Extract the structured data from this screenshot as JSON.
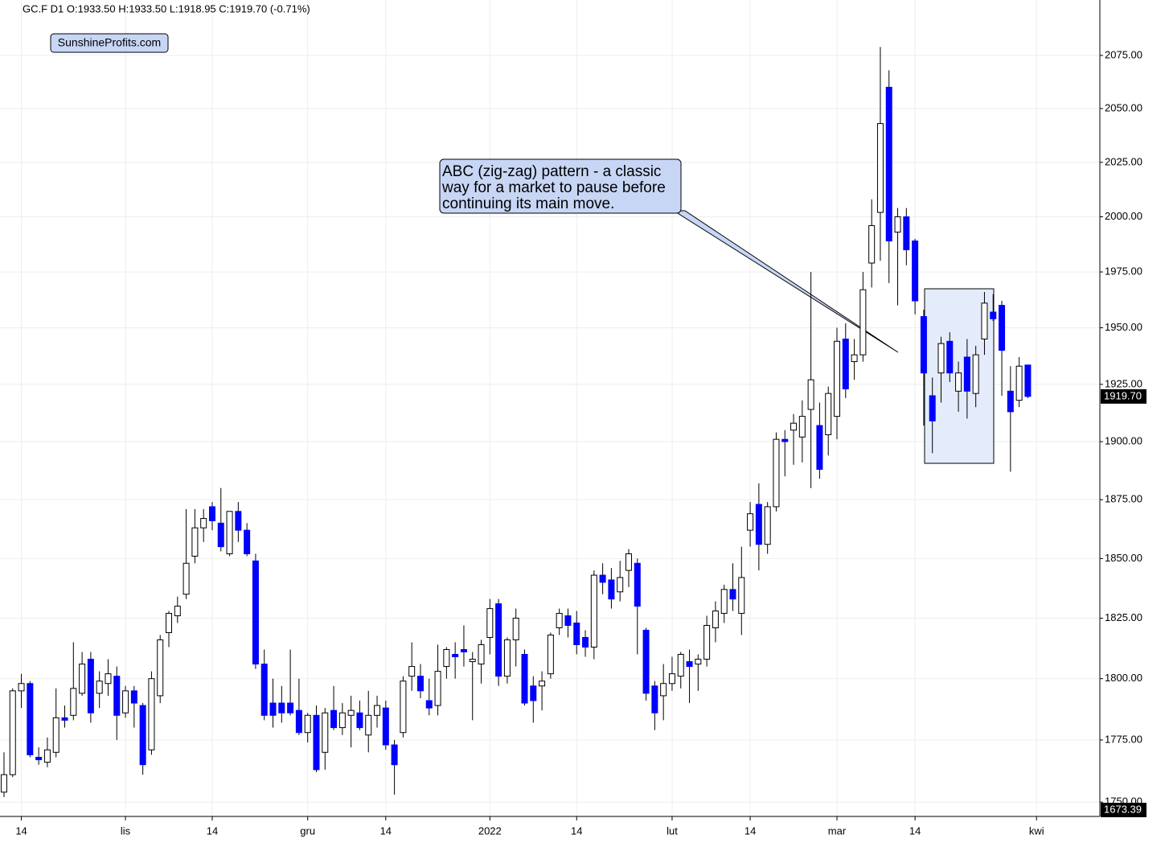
{
  "chart_data": {
    "type": "candlestick",
    "title": "GC.F  D1  O:1933.50  H:1933.50  L:1918.95  C:1919.70  (-0.71%)",
    "watermark": "SunshineProfits.com",
    "annotation": [
      "ABC (zig-zag) pattern - a classic",
      "way for a market to pause before",
      "continuing its main move."
    ],
    "price_tags": [
      "1919.70",
      "1673.39"
    ],
    "up_color": "#ffffff",
    "down_color": "#0000ff",
    "log_scale": true,
    "grid": true,
    "x": [
      0,
      1,
      2,
      3,
      4,
      5,
      6,
      7,
      8,
      9,
      10,
      11,
      12,
      13,
      14,
      15,
      16,
      17,
      18,
      19,
      20,
      21,
      22,
      23,
      24,
      25,
      26,
      27,
      28,
      29,
      30,
      31,
      32,
      33,
      34,
      35,
      36,
      37,
      38,
      39,
      40,
      41,
      42,
      43,
      44,
      45,
      46,
      47,
      48,
      49,
      50,
      51,
      52,
      53,
      54,
      55,
      56,
      57,
      58,
      59,
      60,
      61,
      62,
      63,
      64,
      65,
      66,
      67,
      68,
      69,
      70,
      71,
      72,
      73,
      74,
      75,
      76,
      77,
      78,
      79,
      80,
      81,
      82,
      83,
      84,
      85,
      86,
      87,
      88,
      89,
      90,
      91,
      92,
      93,
      94,
      95,
      96,
      97,
      98,
      99,
      100,
      101,
      102,
      103,
      104,
      105,
      106,
      107,
      108,
      109,
      110,
      111,
      112,
      113,
      114,
      115,
      116,
      117,
      118
    ],
    "open": [
      1754,
      1761,
      1795,
      1798,
      1768,
      1766,
      1770,
      1784,
      1785,
      1794,
      1808,
      1794,
      1798,
      1801,
      1786,
      1795,
      1789,
      1771,
      1793,
      1819,
      1826,
      1835,
      1851,
      1863,
      1872,
      1865,
      1852,
      1870,
      1862,
      1849,
      1806,
      1790,
      1790,
      1790,
      1787,
      1778,
      1785,
      1770,
      1787,
      1780,
      1785,
      1786,
      1777,
      1785,
      1788,
      1773,
      1778,
      1801,
      1801,
      1791,
      1789,
      1805,
      1810,
      1812,
      1807,
      1806,
      1817,
      1831,
      1801,
      1816,
      1810,
      1797,
      1797,
      1802,
      1821,
      1826,
      1823,
      1817,
      1813,
      1843,
      1841,
      1836,
      1845,
      1848,
      1820,
      1797,
      1793,
      1798,
      1801,
      1807,
      1806,
      1808,
      1821,
      1827,
      1837,
      1827,
      1862,
      1873,
      1856,
      1872,
      1901,
      1905,
      1902,
      1914,
      1907,
      1903,
      1911,
      1945,
      1935,
      1938,
      1979,
      2002,
      2060,
      1993,
      2000,
      1989,
      1955,
      1920,
      1930,
      1944,
      1922,
      1937,
      1921,
      1945,
      1957,
      1960,
      1922,
      1918,
      1933.5
    ],
    "high": [
      1770,
      1796,
      1802,
      1799,
      1772,
      1776,
      1796,
      1789,
      1815,
      1811,
      1811,
      1803,
      1808,
      1805,
      1797,
      1797,
      1790,
      1803,
      1818,
      1828,
      1834,
      1871,
      1871,
      1871,
      1874,
      1880,
      1870,
      1874,
      1865,
      1852,
      1812,
      1800,
      1797,
      1812,
      1800,
      1786,
      1789,
      1788,
      1797,
      1790,
      1793,
      1791,
      1795,
      1793,
      1791,
      1775,
      1801,
      1815,
      1806,
      1800,
      1814,
      1813,
      1815,
      1822,
      1811,
      1816,
      1833,
      1833,
      1817,
      1829,
      1812,
      1801,
      1803,
      1819,
      1829,
      1829,
      1828,
      1820,
      1845,
      1848,
      1846,
      1849,
      1854,
      1850,
      1821,
      1799,
      1806,
      1809,
      1811,
      1812,
      1810,
      1826,
      1832,
      1839,
      1848,
      1855,
      1874,
      1882,
      1874,
      1904,
      1905,
      1912,
      1918,
      1975,
      1917,
      1924,
      1950,
      1952,
      1945,
      1975,
      2008,
      2079,
      2068,
      2004,
      2004,
      1990,
      1958,
      1928,
      1946,
      1948,
      1935,
      1945,
      1942,
      1966,
      1965,
      1962,
      1933,
      1937,
      1933.5
    ],
    "low": [
      1752,
      1760,
      1788,
      1768,
      1765,
      1764,
      1768,
      1780,
      1783,
      1793,
      1782,
      1788,
      1793,
      1775,
      1784,
      1780,
      1761,
      1769,
      1790,
      1813,
      1823,
      1833,
      1848,
      1857,
      1862,
      1853,
      1851,
      1857,
      1851,
      1804,
      1783,
      1780,
      1782,
      1785,
      1777,
      1774,
      1762,
      1763,
      1779,
      1777,
      1772,
      1779,
      1770,
      1780,
      1771,
      1753,
      1776,
      1795,
      1792,
      1785,
      1785,
      1800,
      1800,
      1805,
      1783,
      1798,
      1810,
      1797,
      1798,
      1805,
      1789,
      1782,
      1787,
      1800,
      1818,
      1817,
      1810,
      1809,
      1808,
      1835,
      1829,
      1832,
      1838,
      1810,
      1791,
      1779,
      1783,
      1795,
      1796,
      1790,
      1795,
      1805,
      1815,
      1823,
      1828,
      1818,
      1855,
      1845,
      1852,
      1870,
      1885,
      1890,
      1891,
      1880,
      1884,
      1894,
      1901,
      1919,
      1927,
      1935,
      1968,
      1980,
      1970,
      1960,
      1978,
      1956,
      1907,
      1895,
      1917,
      1926,
      1913,
      1910,
      1915,
      1938,
      1953,
      1920,
      1887,
      1915,
      1918.95
    ],
    "close": [
      1761,
      1795,
      1798,
      1769,
      1767,
      1771,
      1784,
      1783,
      1796,
      1806,
      1786,
      1799,
      1802,
      1785,
      1795,
      1790,
      1765,
      1800,
      1816,
      1827,
      1830,
      1848,
      1863,
      1867,
      1866,
      1855,
      1870,
      1862,
      1852,
      1806,
      1785,
      1785,
      1786,
      1786,
      1778,
      1785,
      1763,
      1786,
      1780,
      1786,
      1787,
      1780,
      1785,
      1789,
      1773,
      1765,
      1799,
      1805,
      1795,
      1788,
      1803,
      1812,
      1809,
      1811,
      1808,
      1814,
      1829,
      1801,
      1816,
      1825,
      1790,
      1791,
      1799,
      1818,
      1827,
      1822,
      1814,
      1813,
      1843,
      1840,
      1833,
      1842,
      1852,
      1830,
      1794,
      1786,
      1798,
      1802,
      1810,
      1805,
      1808,
      1822,
      1828,
      1837,
      1833,
      1842,
      1869,
      1856,
      1872,
      1901,
      1900,
      1908,
      1911,
      1927,
      1888,
      1921,
      1944,
      1923,
      1938,
      1967,
      1996,
      2043,
      1989,
      2000,
      1985,
      1962,
      1930,
      1909,
      1943,
      1930,
      1930,
      1922,
      1938,
      1961,
      1954,
      1940,
      1913,
      1933,
      1919.7
    ],
    "xlim": [
      -0.46,
      126.3
    ],
    "xticks": [
      {
        "value": 2,
        "label": "14"
      },
      {
        "value": 14,
        "label": "lis"
      },
      {
        "value": 24,
        "label": "14"
      },
      {
        "value": 35,
        "label": "gru"
      },
      {
        "value": 44,
        "label": "14"
      },
      {
        "value": 56,
        "label": "2022"
      },
      {
        "value": 66,
        "label": "14"
      },
      {
        "value": 77,
        "label": "lut"
      },
      {
        "value": 86,
        "label": "14"
      },
      {
        "value": 96,
        "label": "mar"
      },
      {
        "value": 105,
        "label": "14"
      },
      {
        "value": 119,
        "label": "kwi"
      }
    ],
    "ylim": [
      1744.3,
      2101.4
    ],
    "yticks": [
      {
        "value": 1750,
        "label": "1750.00"
      },
      {
        "value": 1775,
        "label": "1775.00"
      },
      {
        "value": 1800,
        "label": "1800.00"
      },
      {
        "value": 1825,
        "label": "1825.00"
      },
      {
        "value": 1850,
        "label": "1850.00"
      },
      {
        "value": 1875,
        "label": "1875.00"
      },
      {
        "value": 1900,
        "label": "1900.00"
      },
      {
        "value": 1925,
        "label": "1925.00"
      },
      {
        "value": 1950,
        "label": "1950.00"
      },
      {
        "value": 1975,
        "label": "1975.00"
      },
      {
        "value": 2000,
        "label": "2000.00"
      },
      {
        "value": 2025,
        "label": "2025.00"
      },
      {
        "value": 2050,
        "label": "2050.00"
      },
      {
        "value": 2075,
        "label": "2075.00"
      }
    ]
  }
}
